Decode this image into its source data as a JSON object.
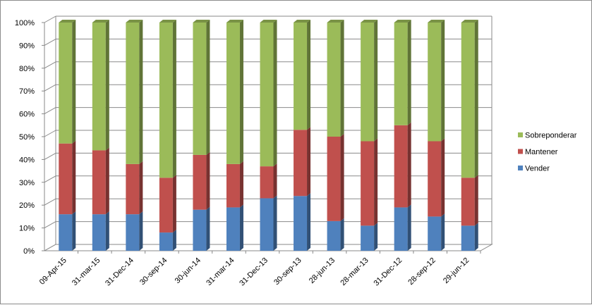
{
  "chart_data": {
    "type": "bar",
    "stacked": true,
    "three_d": true,
    "categories": [
      "09-Apr-15",
      "31-mar-15",
      "31-Dec-14",
      "30-sep-14",
      "30-jun-14",
      "31-mar-14",
      "31-Dec-13",
      "30-sep-13",
      "28-jun-13",
      "28-mar-13",
      "31-Dec-12",
      "28-sep-12",
      "29-jun-12"
    ],
    "series": [
      {
        "name": "Vender",
        "color": "#4f81bd",
        "values": [
          16,
          16,
          16,
          8,
          18,
          19,
          23,
          24,
          13,
          11,
          19,
          15,
          11
        ]
      },
      {
        "name": "Mantener",
        "color": "#c0504d",
        "values": [
          31,
          28,
          22,
          24,
          24,
          19,
          14,
          29,
          37,
          37,
          36,
          33,
          21
        ]
      },
      {
        "name": "Sobreponderar",
        "color": "#9bbb59",
        "values": [
          53,
          56,
          62,
          68,
          58,
          62,
          63,
          47,
          50,
          52,
          45,
          52,
          68
        ]
      }
    ],
    "y_ticks": [
      "0%",
      "10%",
      "20%",
      "30%",
      "40%",
      "50%",
      "60%",
      "70%",
      "80%",
      "90%",
      "100%"
    ],
    "ylim": [
      0,
      100
    ],
    "grid": true,
    "legend": {
      "position": "right",
      "order": [
        "Sobreponderar",
        "Mantener",
        "Vender"
      ]
    }
  }
}
